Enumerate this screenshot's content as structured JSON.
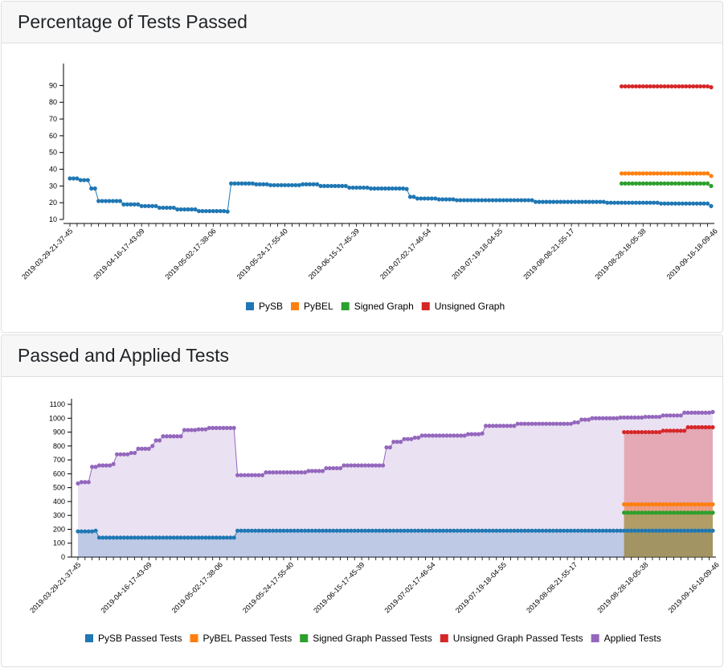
{
  "panels": [
    {
      "title": "Percentage of Tests Passed"
    },
    {
      "title": "Passed and Applied Tests"
    }
  ],
  "colors": {
    "pysb": "#1f77b4",
    "pybel": "#ff7f0e",
    "signed": "#2ca02c",
    "unsigned": "#d62728",
    "applied": "#9467bd"
  },
  "chart_data": [
    {
      "type": "line",
      "title": "",
      "x_tick_labels": [
        "2019-03-29-21-37-45",
        "2019-04-16-17-43-09",
        "2019-05-02-17-38-06",
        "2019-05-24-17-55-40",
        "2019-06-15-17-45-39",
        "2019-07-02-17-46-54",
        "2019-07-19-18-04-55",
        "2019-08-08-21-55-17",
        "2019-08-28-18-05-38",
        "2019-09-16-18-09-46"
      ],
      "ylim": [
        10,
        95
      ],
      "y_ticks": [
        10,
        20,
        30,
        40,
        50,
        60,
        70,
        80,
        90
      ],
      "x_count": 180,
      "legend": [
        "PySB",
        "PyBEL",
        "Signed Graph",
        "Unsigned Graph"
      ],
      "legend_position": "bottom",
      "series": [
        {
          "name": "PySB",
          "segments": [
            [
              0,
              34.5
            ],
            [
              3,
              33.5
            ],
            [
              6,
              28.5
            ],
            [
              8,
              21
            ],
            [
              15,
              19
            ],
            [
              20,
              18
            ],
            [
              25,
              17
            ],
            [
              30,
              16
            ],
            [
              36,
              15
            ],
            [
              44,
              14.7
            ],
            [
              45,
              31.5
            ],
            [
              52,
              31
            ],
            [
              56,
              30.5
            ],
            [
              64,
              30.5
            ],
            [
              65,
              31
            ],
            [
              70,
              30
            ],
            [
              78,
              29
            ],
            [
              84,
              28.5
            ],
            [
              92,
              28.5
            ],
            [
              94,
              28.2
            ],
            [
              95,
              23.5
            ],
            [
              97,
              22.5
            ],
            [
              103,
              22
            ],
            [
              108,
              21.5
            ],
            [
              120,
              21.5
            ],
            [
              130,
              20.5
            ],
            [
              150,
              20
            ],
            [
              165,
              19.5
            ],
            [
              179,
              18
            ]
          ]
        },
        {
          "name": "PyBEL",
          "segments": [
            [
              154,
              37.5
            ],
            [
              179,
              36
            ]
          ],
          "start": 154
        },
        {
          "name": "Signed Graph",
          "segments": [
            [
              154,
              31.5
            ],
            [
              179,
              30
            ]
          ],
          "start": 154
        },
        {
          "name": "Unsigned Graph",
          "segments": [
            [
              154,
              89.5
            ],
            [
              179,
              89
            ]
          ],
          "start": 154
        }
      ]
    },
    {
      "type": "area",
      "title": "",
      "x_tick_labels": [
        "2019-03-29-21-37-45",
        "2019-04-16-17-43-09",
        "2019-05-02-17-38-06",
        "2019-05-24-17-55-40",
        "2019-06-15-17-45-39",
        "2019-07-02-17-46-54",
        "2019-07-19-18-04-55",
        "2019-08-08-21-55-17",
        "2019-08-28-18-05-38",
        "2019-09-16-18-09-46"
      ],
      "ylim": [
        0,
        1100
      ],
      "y_ticks": [
        0,
        100,
        200,
        300,
        400,
        500,
        600,
        700,
        800,
        900,
        1000,
        1100
      ],
      "x_count": 180,
      "legend": [
        "PySB Passed Tests",
        "PyBEL Passed Tests",
        "Signed Graph Passed Tests",
        "Unsigned Graph Passed Tests",
        "Applied Tests"
      ],
      "legend_position": "bottom",
      "series": [
        {
          "name": "PySB Passed Tests",
          "segments": [
            [
              0,
              185
            ],
            [
              3,
              185
            ],
            [
              5,
              190
            ],
            [
              6,
              140
            ],
            [
              30,
              140
            ],
            [
              44,
              140
            ],
            [
              45,
              190
            ],
            [
              179,
              190
            ]
          ]
        },
        {
          "name": "PyBEL Passed Tests",
          "segments": [
            [
              154,
              380
            ],
            [
              179,
              380
            ]
          ],
          "start": 154
        },
        {
          "name": "Signed Graph Passed Tests",
          "segments": [
            [
              154,
              320
            ],
            [
              179,
              320
            ]
          ],
          "start": 154
        },
        {
          "name": "Unsigned Graph Passed Tests",
          "segments": [
            [
              154,
              900
            ],
            [
              165,
              910
            ],
            [
              172,
              935
            ],
            [
              179,
              935
            ]
          ],
          "start": 154
        },
        {
          "name": "Applied Tests",
          "segments": [
            [
              0,
              530
            ],
            [
              1,
              540
            ],
            [
              3,
              540
            ],
            [
              4,
              650
            ],
            [
              6,
              660
            ],
            [
              10,
              670
            ],
            [
              11,
              740
            ],
            [
              15,
              750
            ],
            [
              17,
              780
            ],
            [
              21,
              800
            ],
            [
              22,
              840
            ],
            [
              24,
              870
            ],
            [
              29,
              870
            ],
            [
              30,
              915
            ],
            [
              34,
              920
            ],
            [
              37,
              930
            ],
            [
              44,
              930
            ],
            [
              45,
              590
            ],
            [
              52,
              590
            ],
            [
              53,
              610
            ],
            [
              60,
              610
            ],
            [
              64,
              610
            ],
            [
              65,
              620
            ],
            [
              70,
              640
            ],
            [
              75,
              660
            ],
            [
              84,
              660
            ],
            [
              86,
              660
            ],
            [
              87,
              790
            ],
            [
              89,
              830
            ],
            [
              92,
              850
            ],
            [
              95,
              860
            ],
            [
              97,
              875
            ],
            [
              108,
              875
            ],
            [
              110,
              885
            ],
            [
              114,
              890
            ],
            [
              115,
              945
            ],
            [
              123,
              945
            ],
            [
              124,
              960
            ],
            [
              132,
              960
            ],
            [
              134,
              960
            ],
            [
              140,
              970
            ],
            [
              142,
              990
            ],
            [
              145,
              1000
            ],
            [
              153,
              1005
            ],
            [
              160,
              1010
            ],
            [
              165,
              1020
            ],
            [
              171,
              1040
            ],
            [
              179,
              1045
            ]
          ]
        }
      ]
    }
  ]
}
